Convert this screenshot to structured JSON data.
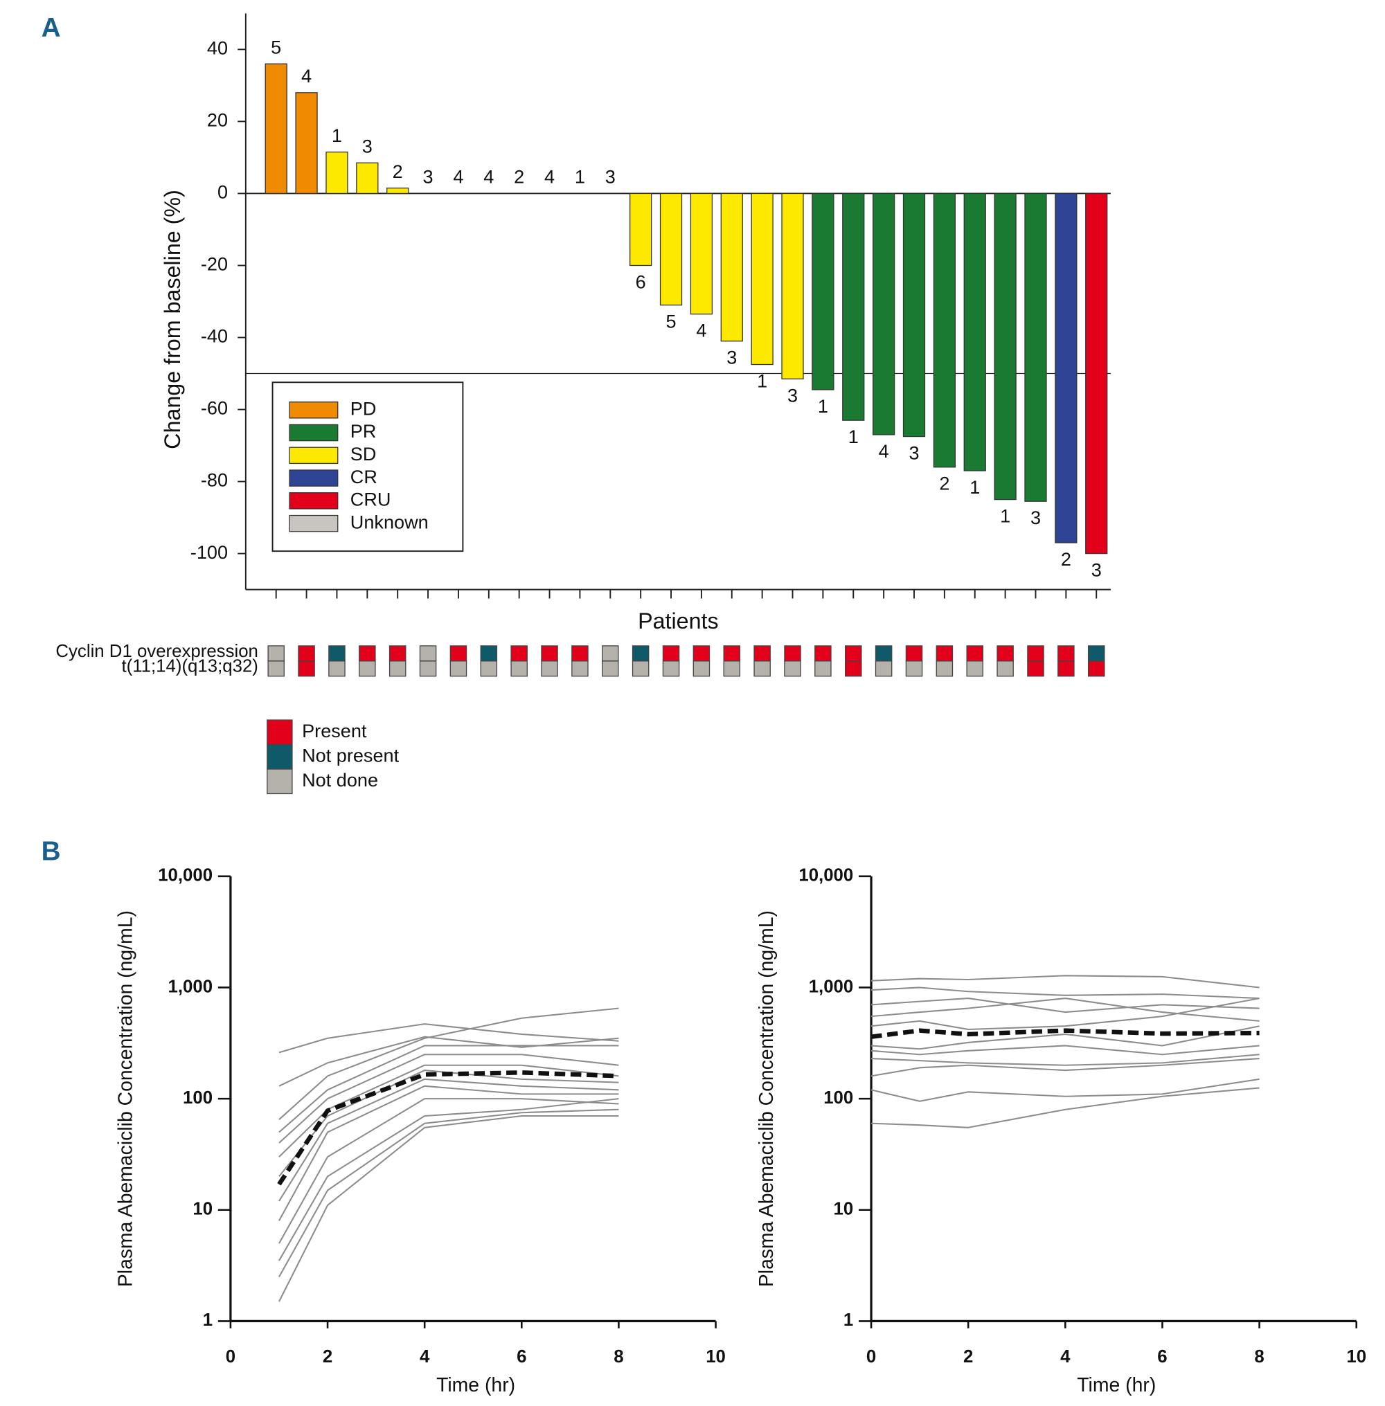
{
  "chart_data": [
    {
      "type": "bar",
      "panel_label": "A",
      "ylabel": "Change from baseline (%)",
      "xlabel": "Patients",
      "ylim": [
        -110,
        50
      ],
      "yticks": [
        40,
        20,
        0,
        -20,
        -40,
        -60,
        -80,
        -100
      ],
      "reference_line": -50,
      "values": [
        36,
        28,
        11.5,
        8.5,
        1.5,
        0,
        0,
        0,
        0,
        0,
        0,
        0,
        -20,
        -31,
        -33.5,
        -41,
        -47.5,
        -51.5,
        -54.5,
        -63,
        -67,
        -67.5,
        -76,
        -77,
        -85,
        -85.5,
        -97,
        -100
      ],
      "bar_labels": [
        5,
        4,
        1,
        3,
        2,
        3,
        4,
        4,
        2,
        4,
        1,
        3,
        6,
        5,
        4,
        3,
        1,
        3,
        1,
        1,
        4,
        3,
        2,
        1,
        1,
        3,
        2,
        3
      ],
      "responses": [
        0,
        0,
        2,
        2,
        2,
        null,
        null,
        null,
        null,
        null,
        null,
        null,
        2,
        2,
        2,
        2,
        2,
        2,
        1,
        1,
        1,
        1,
        1,
        1,
        1,
        1,
        3,
        4
      ],
      "legend": [
        {
          "name": "PD",
          "color": "#f08a00"
        },
        {
          "name": "PR",
          "color": "#1a7a32"
        },
        {
          "name": "SD",
          "color": "#fde800"
        },
        {
          "name": "CR",
          "color": "#2e4596"
        },
        {
          "name": "CRU",
          "color": "#e2001a"
        },
        {
          "name": "Unknown",
          "color": "#c8c4bf"
        }
      ],
      "marker_rows": [
        {
          "label": "Cyclin D1 overexpression",
          "values": [
            2,
            0,
            1,
            0,
            0,
            2,
            0,
            1,
            0,
            0,
            0,
            2,
            1,
            0,
            0,
            0,
            0,
            0,
            0,
            0,
            1,
            0,
            0,
            0,
            0,
            0,
            0,
            1
          ]
        },
        {
          "label": "t(11;14)(q13;q32)",
          "values": [
            2,
            0,
            2,
            2,
            2,
            2,
            2,
            2,
            2,
            2,
            2,
            2,
            2,
            2,
            2,
            2,
            2,
            2,
            2,
            0,
            2,
            2,
            2,
            2,
            2,
            0,
            0,
            0
          ]
        }
      ],
      "marker_legend": [
        {
          "name": "Present",
          "color": "#e2001a"
        },
        {
          "name": "Not present",
          "color": "#0e5a68"
        },
        {
          "name": "Not done",
          "color": "#b5b1ab"
        }
      ]
    },
    {
      "type": "line",
      "panel_label": "B",
      "ylabel": "Plasma Abemaciclib Concentration (ng/mL)",
      "xlabel": "Time (hr)",
      "log_scale": true,
      "ylim": [
        1,
        10000
      ],
      "yticks": [
        {
          "value": 10000,
          "label": "10,000"
        },
        {
          "value": 1000,
          "label": "1,000"
        },
        100,
        10,
        1
      ],
      "xlim": [
        0,
        10
      ],
      "xticks": [
        0,
        2,
        4,
        6,
        8,
        10
      ],
      "x": [
        1,
        2,
        4,
        6,
        8
      ],
      "series": [
        {
          "color": "#8c8c8c",
          "values": [
            260,
            350,
            470,
            380,
            330
          ]
        },
        {
          "color": "#8c8c8c",
          "values": [
            130,
            210,
            360,
            290,
            350
          ]
        },
        {
          "color": "#8c8c8c",
          "values": [
            65,
            160,
            350,
            530,
            650
          ]
        },
        {
          "color": "#8c8c8c",
          "values": [
            50,
            120,
            300,
            300,
            300
          ]
        },
        {
          "color": "#8c8c8c",
          "values": [
            40,
            100,
            250,
            250,
            200
          ]
        },
        {
          "color": "#8c8c8c",
          "values": [
            30,
            80,
            200,
            200,
            160
          ]
        },
        {
          "color": "#8c8c8c",
          "values": [
            20,
            70,
            180,
            150,
            140
          ]
        },
        {
          "color": "#8c8c8c",
          "values": [
            12,
            60,
            150,
            130,
            120
          ]
        },
        {
          "color": "#8c8c8c",
          "values": [
            8,
            50,
            130,
            110,
            110
          ]
        },
        {
          "color": "#8c8c8c",
          "values": [
            5,
            30,
            100,
            100,
            90
          ]
        },
        {
          "color": "#8c8c8c",
          "values": [
            3.5,
            20,
            70,
            80,
            100
          ]
        },
        {
          "color": "#8c8c8c",
          "values": [
            2.5,
            15,
            60,
            75,
            80
          ]
        },
        {
          "color": "#8c8c8c",
          "values": [
            1.5,
            11,
            55,
            70,
            70
          ]
        },
        {
          "color": "#111111",
          "dashed": true,
          "values": [
            17,
            78,
            165,
            172,
            160
          ]
        }
      ]
    },
    {
      "type": "line",
      "ylabel": "Plasma Abemaciclib Concentration (ng/mL)",
      "xlabel": "Time (hr)",
      "log_scale": true,
      "ylim": [
        1,
        10000
      ],
      "yticks": [
        {
          "value": 10000,
          "label": "10,000"
        },
        {
          "value": 1000,
          "label": "1,000"
        },
        100,
        10,
        1
      ],
      "xlim": [
        0,
        10
      ],
      "xticks": [
        0,
        2,
        4,
        6,
        8,
        10
      ],
      "x": [
        0,
        1,
        2,
        4,
        6,
        8
      ],
      "series": [
        {
          "color": "#8c8c8c",
          "values": [
            1150,
            1200,
            1180,
            1280,
            1250,
            1000
          ]
        },
        {
          "color": "#8c8c8c",
          "values": [
            950,
            1000,
            920,
            850,
            870,
            800
          ]
        },
        {
          "color": "#8c8c8c",
          "values": [
            700,
            750,
            800,
            600,
            700,
            650
          ]
        },
        {
          "color": "#8c8c8c",
          "values": [
            550,
            600,
            650,
            800,
            600,
            500
          ]
        },
        {
          "color": "#8c8c8c",
          "values": [
            450,
            500,
            420,
            450,
            550,
            800
          ]
        },
        {
          "color": "#8c8c8c",
          "values": [
            300,
            280,
            320,
            380,
            300,
            450
          ]
        },
        {
          "color": "#8c8c8c",
          "values": [
            270,
            250,
            270,
            300,
            250,
            300
          ]
        },
        {
          "color": "#8c8c8c",
          "values": [
            230,
            220,
            210,
            200,
            210,
            250
          ]
        },
        {
          "color": "#8c8c8c",
          "values": [
            160,
            190,
            200,
            180,
            200,
            230
          ]
        },
        {
          "color": "#8c8c8c",
          "values": [
            120,
            95,
            115,
            105,
            110,
            150
          ]
        },
        {
          "color": "#8c8c8c",
          "values": [
            60,
            58,
            55,
            80,
            105,
            125
          ]
        },
        {
          "color": "#111111",
          "dashed": true,
          "values": [
            360,
            410,
            380,
            410,
            385,
            390
          ]
        }
      ]
    }
  ]
}
